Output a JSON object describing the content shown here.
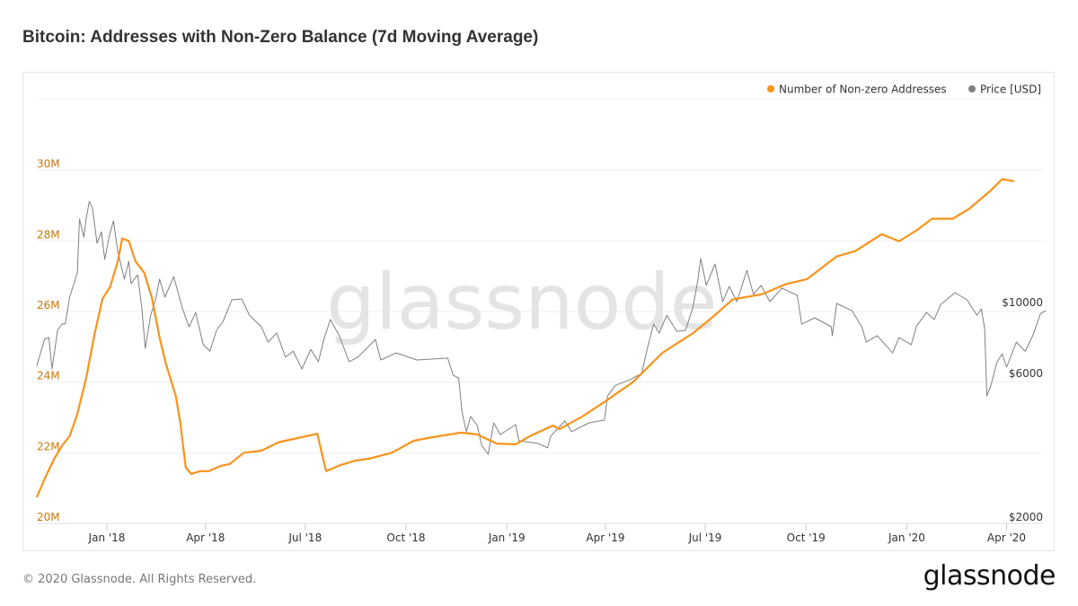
{
  "title": "Bitcoin: Addresses with Non-Zero Balance (7d Moving Average)",
  "footer": "© 2020 Glassnode. All Rights Reserved.",
  "logo": "glassnode",
  "watermark": "glassnode",
  "chart_data": {
    "type": "line",
    "title": "Bitcoin: Addresses with Non-Zero Balance (7d Moving Average)",
    "legend_position": "top-right",
    "grid": true,
    "x_ticks": [
      "Jan '18",
      "Apr '18",
      "Jul '18",
      "Oct '18",
      "Jan '19",
      "Apr '19",
      "Jul '19",
      "Oct '19",
      "Jan '20",
      "Apr '20"
    ],
    "x_tick_dates": [
      "2018-01-01",
      "2018-04-01",
      "2018-07-01",
      "2018-10-01",
      "2019-01-01",
      "2019-04-01",
      "2019-07-01",
      "2019-10-01",
      "2020-01-01",
      "2020-04-01"
    ],
    "y_left": {
      "scale": "linear",
      "range": [
        20,
        32
      ],
      "ticks": [
        "20M",
        "22M",
        "24M",
        "26M",
        "28M",
        "30M"
      ],
      "tick_values": [
        20,
        22,
        24,
        26,
        28,
        30
      ],
      "unit": "millions"
    },
    "y_right": {
      "scale": "log",
      "ticks": [
        "$2000",
        "$6000",
        "$10000"
      ],
      "tick_values": [
        2000,
        6000,
        10000
      ]
    },
    "series": [
      {
        "name": "Number of Non-zero Addresses",
        "axis": "left",
        "color": "#f7931a",
        "data": [
          [
            "2017-10-29",
            20.74
          ],
          [
            "2017-11-06",
            21.32
          ],
          [
            "2017-11-14",
            21.83
          ],
          [
            "2017-11-21",
            22.2
          ],
          [
            "2017-11-28",
            22.47
          ],
          [
            "2017-12-05",
            23.1
          ],
          [
            "2017-12-13",
            24.1
          ],
          [
            "2017-12-21",
            25.4
          ],
          [
            "2017-12-28",
            26.36
          ],
          [
            "2018-01-04",
            26.7
          ],
          [
            "2018-01-11",
            27.43
          ],
          [
            "2018-01-15",
            28.07
          ],
          [
            "2018-01-21",
            28.0
          ],
          [
            "2018-01-27",
            27.43
          ],
          [
            "2018-02-04",
            27.1
          ],
          [
            "2018-02-11",
            26.4
          ],
          [
            "2018-02-18",
            25.27
          ],
          [
            "2018-02-24",
            24.5
          ],
          [
            "2018-03-05",
            23.6
          ],
          [
            "2018-03-09",
            22.85
          ],
          [
            "2018-03-14",
            21.58
          ],
          [
            "2018-03-19",
            21.4
          ],
          [
            "2018-03-27",
            21.48
          ],
          [
            "2018-04-04",
            21.48
          ],
          [
            "2018-04-15",
            21.63
          ],
          [
            "2018-04-23",
            21.68
          ],
          [
            "2018-05-06",
            22.0
          ],
          [
            "2018-05-22",
            22.06
          ],
          [
            "2018-06-07",
            22.3
          ],
          [
            "2018-07-02",
            22.47
          ],
          [
            "2018-07-12",
            22.54
          ],
          [
            "2018-07-20",
            21.48
          ],
          [
            "2018-08-02",
            21.65
          ],
          [
            "2018-08-16",
            21.78
          ],
          [
            "2018-08-28",
            21.83
          ],
          [
            "2018-09-18",
            22.0
          ],
          [
            "2018-10-08",
            22.34
          ],
          [
            "2018-10-25",
            22.44
          ],
          [
            "2018-11-10",
            22.52
          ],
          [
            "2018-11-20",
            22.57
          ],
          [
            "2018-12-05",
            22.52
          ],
          [
            "2018-12-13",
            22.4
          ],
          [
            "2018-12-23",
            22.26
          ],
          [
            "2019-01-09",
            22.24
          ],
          [
            "2019-01-22",
            22.47
          ],
          [
            "2019-02-12",
            22.77
          ],
          [
            "2019-02-18",
            22.67
          ],
          [
            "2019-03-11",
            23.03
          ],
          [
            "2019-03-31",
            23.44
          ],
          [
            "2019-04-26",
            24.0
          ],
          [
            "2019-05-23",
            24.83
          ],
          [
            "2019-06-20",
            25.39
          ],
          [
            "2019-07-10",
            25.9
          ],
          [
            "2019-07-26",
            26.34
          ],
          [
            "2019-08-22",
            26.49
          ],
          [
            "2019-09-12",
            26.77
          ],
          [
            "2019-10-02",
            26.92
          ],
          [
            "2019-10-29",
            27.56
          ],
          [
            "2019-11-15",
            27.71
          ],
          [
            "2019-12-09",
            28.19
          ],
          [
            "2019-12-25",
            27.99
          ],
          [
            "2020-01-11",
            28.32
          ],
          [
            "2020-01-24",
            28.63
          ],
          [
            "2020-02-12",
            28.63
          ],
          [
            "2020-02-27",
            28.91
          ],
          [
            "2020-03-18",
            29.44
          ],
          [
            "2020-03-28",
            29.75
          ],
          [
            "2020-04-08",
            29.69
          ]
        ]
      },
      {
        "name": "Price [USD]",
        "axis": "right",
        "color": "#808080",
        "data": [
          [
            "2017-10-29",
            6640
          ],
          [
            "2017-11-05",
            8150
          ],
          [
            "2017-11-09",
            8260
          ],
          [
            "2017-11-12",
            6500
          ],
          [
            "2017-11-17",
            8730
          ],
          [
            "2017-11-21",
            9160
          ],
          [
            "2017-11-24",
            9160
          ],
          [
            "2017-11-28",
            11250
          ],
          [
            "2017-12-05",
            13530
          ],
          [
            "2017-12-07",
            20420
          ],
          [
            "2017-12-11",
            17780
          ],
          [
            "2017-12-13",
            20420
          ],
          [
            "2017-12-16",
            23420
          ],
          [
            "2017-12-19",
            22020
          ],
          [
            "2017-12-23",
            16980
          ],
          [
            "2017-12-27",
            18540
          ],
          [
            "2017-12-30",
            15000
          ],
          [
            "2018-01-03",
            17780
          ],
          [
            "2018-01-07",
            20140
          ],
          [
            "2018-01-11",
            15850
          ],
          [
            "2018-01-17",
            12910
          ],
          [
            "2018-01-21",
            14790
          ],
          [
            "2018-01-23",
            12470
          ],
          [
            "2018-01-29",
            13340
          ],
          [
            "2018-02-02",
            10280
          ],
          [
            "2018-02-05",
            7600
          ],
          [
            "2018-02-10",
            9800
          ],
          [
            "2018-02-15",
            11250
          ],
          [
            "2018-02-18",
            12910
          ],
          [
            "2018-02-23",
            11250
          ],
          [
            "2018-03-03",
            13160
          ],
          [
            "2018-03-11",
            10280
          ],
          [
            "2018-03-17",
            8970
          ],
          [
            "2018-03-23",
            10000
          ],
          [
            "2018-03-30",
            7820
          ],
          [
            "2018-04-05",
            7450
          ],
          [
            "2018-04-11",
            8730
          ],
          [
            "2018-04-17",
            9350
          ],
          [
            "2018-04-25",
            11020
          ],
          [
            "2018-05-04",
            11090
          ],
          [
            "2018-05-11",
            9800
          ],
          [
            "2018-05-22",
            8970
          ],
          [
            "2018-05-28",
            7980
          ],
          [
            "2018-06-05",
            8550
          ],
          [
            "2018-06-13",
            7110
          ],
          [
            "2018-06-20",
            7450
          ],
          [
            "2018-06-28",
            6500
          ],
          [
            "2018-07-06",
            7550
          ],
          [
            "2018-07-13",
            6870
          ],
          [
            "2018-07-18",
            8150
          ],
          [
            "2018-07-24",
            9480
          ],
          [
            "2018-08-01",
            8380
          ],
          [
            "2018-08-10",
            6870
          ],
          [
            "2018-08-18",
            7110
          ],
          [
            "2018-08-26",
            7600
          ],
          [
            "2018-09-03",
            8150
          ],
          [
            "2018-09-08",
            6960
          ],
          [
            "2018-09-22",
            7350
          ],
          [
            "2018-10-11",
            6960
          ],
          [
            "2018-11-08",
            7060
          ],
          [
            "2018-11-13",
            6190
          ],
          [
            "2018-11-18",
            6070
          ],
          [
            "2018-11-21",
            4710
          ],
          [
            "2018-11-25",
            4030
          ],
          [
            "2018-11-29",
            4520
          ],
          [
            "2018-12-05",
            4220
          ],
          [
            "2018-12-09",
            3630
          ],
          [
            "2018-12-15",
            3390
          ],
          [
            "2018-12-20",
            4310
          ],
          [
            "2018-12-26",
            3940
          ],
          [
            "2019-01-09",
            4250
          ],
          [
            "2019-01-12",
            3760
          ],
          [
            "2019-01-30",
            3680
          ],
          [
            "2019-02-07",
            3560
          ],
          [
            "2019-02-10",
            3890
          ],
          [
            "2019-02-23",
            4370
          ],
          [
            "2019-03-01",
            4030
          ],
          [
            "2019-03-17",
            4310
          ],
          [
            "2019-03-31",
            4400
          ],
          [
            "2019-04-03",
            5290
          ],
          [
            "2019-04-10",
            5740
          ],
          [
            "2019-04-23",
            5980
          ],
          [
            "2019-05-04",
            6280
          ],
          [
            "2019-05-10",
            7820
          ],
          [
            "2019-05-15",
            9160
          ],
          [
            "2019-05-20",
            8550
          ],
          [
            "2019-05-27",
            9800
          ],
          [
            "2019-06-05",
            8670
          ],
          [
            "2019-06-13",
            8730
          ],
          [
            "2019-06-20",
            10490
          ],
          [
            "2019-06-24",
            12640
          ],
          [
            "2019-06-27",
            15100
          ],
          [
            "2019-07-02",
            12300
          ],
          [
            "2019-07-10",
            14490
          ],
          [
            "2019-07-17",
            10870
          ],
          [
            "2019-07-23",
            12210
          ],
          [
            "2019-07-30",
            10870
          ],
          [
            "2019-08-08",
            13800
          ],
          [
            "2019-08-14",
            11480
          ],
          [
            "2019-08-21",
            12300
          ],
          [
            "2019-08-29",
            10870
          ],
          [
            "2019-09-09",
            12050
          ],
          [
            "2019-09-23",
            11400
          ],
          [
            "2019-09-27",
            9160
          ],
          [
            "2019-10-09",
            9610
          ],
          [
            "2019-10-24",
            8970
          ],
          [
            "2019-10-25",
            8380
          ],
          [
            "2019-10-29",
            10720
          ],
          [
            "2019-11-12",
            10140
          ],
          [
            "2019-11-21",
            8970
          ],
          [
            "2019-11-25",
            7980
          ],
          [
            "2019-12-05",
            8380
          ],
          [
            "2019-12-19",
            7350
          ],
          [
            "2019-12-25",
            8260
          ],
          [
            "2020-01-05",
            7820
          ],
          [
            "2020-01-10",
            9040
          ],
          [
            "2020-01-19",
            10000
          ],
          [
            "2020-01-26",
            9480
          ],
          [
            "2020-02-01",
            10640
          ],
          [
            "2020-02-14",
            11640
          ],
          [
            "2020-02-25",
            11020
          ],
          [
            "2020-03-05",
            9800
          ],
          [
            "2020-03-09",
            10280
          ],
          [
            "2020-03-12",
            8850
          ],
          [
            "2020-03-14",
            5290
          ],
          [
            "2020-03-18",
            5780
          ],
          [
            "2020-03-23",
            6820
          ],
          [
            "2020-03-28",
            7300
          ],
          [
            "2020-04-01",
            6590
          ],
          [
            "2020-04-10",
            7980
          ],
          [
            "2020-04-18",
            7450
          ],
          [
            "2020-04-25",
            8380
          ],
          [
            "2020-05-02",
            9930
          ],
          [
            "2020-05-07",
            10140
          ]
        ]
      }
    ]
  }
}
